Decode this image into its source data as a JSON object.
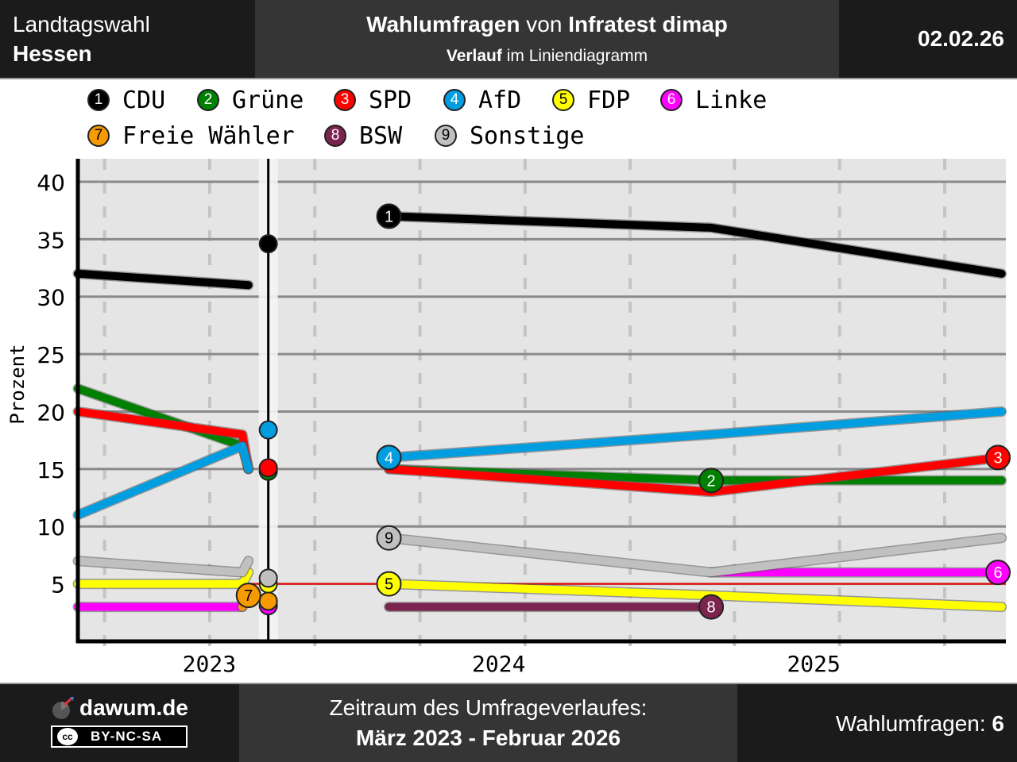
{
  "header": {
    "region_label": "Landtagswahl",
    "region_name": "Hessen",
    "title_bold_1": "Wahlumfragen",
    "title_normal": " von ",
    "title_bold_2": "Infratest dimap",
    "subtitle_bold": "Verlauf",
    "subtitle_normal": " im Liniendiagramm",
    "date": "02.02.26"
  },
  "footer": {
    "site": "dawum.de",
    "license": "BY-NC-SA",
    "license_logo": "cc",
    "period_label": "Zeitraum des Umfrageverlaufes:",
    "period": "März 2023 - Februar 2026",
    "count_label": "Wahlumfragen: ",
    "count": "6"
  },
  "chart_data": {
    "type": "line",
    "ylabel": "Prozent",
    "xlabel": "",
    "ylim": [
      0,
      42
    ],
    "yticks": [
      5,
      10,
      15,
      20,
      25,
      30,
      35,
      40
    ],
    "xlim": [
      "2023-03-01",
      "2026-02-10"
    ],
    "xticks": [
      {
        "label": "2023"
      },
      {
        "label": "2024"
      },
      {
        "label": "2025"
      }
    ],
    "grid": true,
    "legend_position": "top",
    "threshold": 5,
    "threshold_color": "#ff0000",
    "election": {
      "date": "2023-10-08",
      "results": [
        {
          "party": "CDU",
          "value": 34.6
        },
        {
          "party": "AfD",
          "value": 18.4
        },
        {
          "party": "SPD",
          "value": 15.1
        },
        {
          "party": "Grüne",
          "value": 14.8
        },
        {
          "party": "Sonstige",
          "value": 5.5
        },
        {
          "party": "FDP",
          "value": 5.0
        },
        {
          "party": "Freie Wähler",
          "value": 3.5
        },
        {
          "party": "Linke",
          "value": 3.1
        }
      ]
    },
    "series": [
      {
        "name": "CDU",
        "number": "1",
        "color": "#000000",
        "text_color": "#ffffff",
        "label_at": "start",
        "segments": [
          {
            "dates": [
              "2023-03-01",
              "2023-09-15"
            ],
            "values": [
              32,
              31
            ]
          },
          {
            "dates": [
              "2024-02-25",
              "2025-03-05",
              "2026-02-05"
            ],
            "values": [
              37,
              36,
              32
            ]
          }
        ]
      },
      {
        "name": "Grüne",
        "number": "2",
        "color": "#008000",
        "text_color": "#ffffff",
        "label_at": "middle",
        "segments": [
          {
            "dates": [
              "2023-03-01",
              "2023-09-08",
              "2023-09-15"
            ],
            "values": [
              22,
              17,
              15
            ]
          },
          {
            "dates": [
              "2024-02-25",
              "2025-03-05",
              "2026-02-05"
            ],
            "values": [
              15,
              14,
              14
            ]
          }
        ]
      },
      {
        "name": "SPD",
        "number": "3",
        "color": "#ff0000",
        "text_color": "#ffffff",
        "label_at": "end",
        "segments": [
          {
            "dates": [
              "2023-03-01",
              "2023-09-08",
              "2023-09-15"
            ],
            "values": [
              20,
              18,
              15
            ]
          },
          {
            "dates": [
              "2024-02-25",
              "2025-03-05",
              "2026-02-05"
            ],
            "values": [
              15,
              13,
              16
            ]
          }
        ]
      },
      {
        "name": "AfD",
        "number": "4",
        "color": "#009ee0",
        "text_color": "#ffffff",
        "label_at": "start",
        "segments": [
          {
            "dates": [
              "2023-03-01",
              "2023-09-08",
              "2023-09-15"
            ],
            "values": [
              11,
              17,
              15
            ]
          },
          {
            "dates": [
              "2024-02-25",
              "2025-03-05",
              "2026-02-05"
            ],
            "values": [
              16,
              18,
              20
            ]
          }
        ]
      },
      {
        "name": "FDP",
        "number": "5",
        "color": "#ffff00",
        "text_color": "#000000",
        "label_at": "start",
        "segments": [
          {
            "dates": [
              "2023-03-01",
              "2023-09-08",
              "2023-09-15"
            ],
            "values": [
              5,
              5,
              6
            ]
          },
          {
            "dates": [
              "2024-02-25",
              "2025-03-05",
              "2026-02-05"
            ],
            "values": [
              5,
              4,
              3
            ]
          }
        ]
      },
      {
        "name": "Linke",
        "number": "6",
        "color": "#ff00ff",
        "text_color": "#ffffff",
        "label_at": "end",
        "segments": [
          {
            "dates": [
              "2023-03-01",
              "2023-09-08"
            ],
            "values": [
              3,
              3
            ]
          },
          {
            "dates": [
              "2025-03-05",
              "2026-02-05"
            ],
            "values": [
              6,
              6
            ]
          }
        ]
      },
      {
        "name": "Freie Wähler",
        "number": "7",
        "color": "#f59a00",
        "text_color": "#000000",
        "label_at": "end",
        "segments": [
          {
            "dates": [
              "2023-09-08",
              "2023-09-15"
            ],
            "values": [
              3,
              4
            ]
          }
        ]
      },
      {
        "name": "BSW",
        "number": "8",
        "color": "#7b2450",
        "text_color": "#ffffff",
        "label_at": "end",
        "segments": [
          {
            "dates": [
              "2024-02-25",
              "2025-03-05"
            ],
            "values": [
              3,
              3
            ]
          }
        ]
      },
      {
        "name": "Sonstige",
        "number": "9",
        "color": "#c0c0c0",
        "text_color": "#000000",
        "label_at": "start",
        "segments": [
          {
            "dates": [
              "2023-03-01",
              "2023-09-08",
              "2023-09-15"
            ],
            "values": [
              7,
              6,
              7
            ]
          },
          {
            "dates": [
              "2024-02-25",
              "2025-03-05",
              "2026-02-05"
            ],
            "values": [
              9,
              6,
              9
            ]
          }
        ]
      }
    ]
  }
}
